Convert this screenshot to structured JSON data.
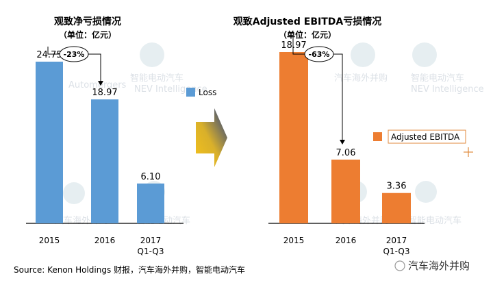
{
  "chart_data": [
    {
      "type": "bar",
      "title": "观致净亏损情况",
      "subtitle": "（单位：亿元）",
      "categories": [
        "2015",
        "2016",
        "2017 Q1-Q3"
      ],
      "category_lines": [
        [
          "2015"
        ],
        [
          "2016"
        ],
        [
          "2017",
          "Q1-Q3"
        ]
      ],
      "value_labels": [
        "24.75",
        "18.97",
        "6.10"
      ],
      "series": [
        {
          "name": "Loss",
          "values": [
            24.75,
            18.97,
            6.1
          ],
          "color": "#5b9bd5"
        }
      ],
      "annotation": "-23%",
      "legend": "right",
      "ylim": [
        0,
        30
      ]
    },
    {
      "type": "bar",
      "title": "观致Adjusted EBITDA亏损情况",
      "subtitle": "（单位：亿元）",
      "categories": [
        "2015",
        "2016",
        "2017 Q1-Q3"
      ],
      "category_lines": [
        [
          "2015"
        ],
        [
          "2016"
        ],
        [
          "2017",
          "Q1-Q3"
        ]
      ],
      "value_labels": [
        "18.97",
        "7.06",
        "3.36"
      ],
      "series": [
        {
          "name": "Adjusted EBITDA",
          "values": [
            18.97,
            7.06,
            3.36
          ],
          "color": "#ed7d31"
        }
      ],
      "annotation": "-63%",
      "legend": "right",
      "ylim": [
        0,
        23
      ]
    }
  ],
  "source": "Source: Kenon Holdings 财报，汽车海外并购，智能电动汽车",
  "watermarks": {
    "automergers_cn": "汽车海外并购",
    "automergers_en": "Automergers",
    "nev_cn": "智能电动汽车",
    "nev_en": "NEV Intelligence"
  },
  "brand": "汽车海外并购",
  "colors": {
    "blue": "#5b9bd5",
    "orange": "#ed7d31",
    "axis": "#000000"
  }
}
